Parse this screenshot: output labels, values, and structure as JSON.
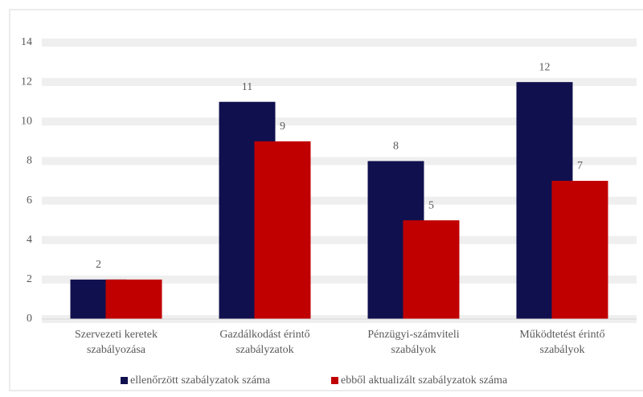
{
  "chart_data": {
    "type": "bar",
    "categories": [
      [
        "Szervezeti keretek",
        "szabályozása"
      ],
      [
        "Gazdálkodást érintő",
        "szabályzatok"
      ],
      [
        "Pénzügyi-számviteli",
        "szabályok"
      ],
      [
        "Működtetést érintő",
        "szabályok"
      ]
    ],
    "series": [
      {
        "name": "ellenőrzött szabályzatok száma",
        "color": "#10104f",
        "values": [
          2,
          11,
          8,
          12
        ]
      },
      {
        "name": "ebből aktualizált szabályzatok száma",
        "color": "#c00000",
        "values": [
          2,
          9,
          5,
          7
        ]
      }
    ],
    "ylim": [
      0,
      14
    ],
    "yticks": [
      0,
      2,
      4,
      6,
      8,
      10,
      12,
      14
    ],
    "grid": true,
    "legend": "bottom"
  }
}
